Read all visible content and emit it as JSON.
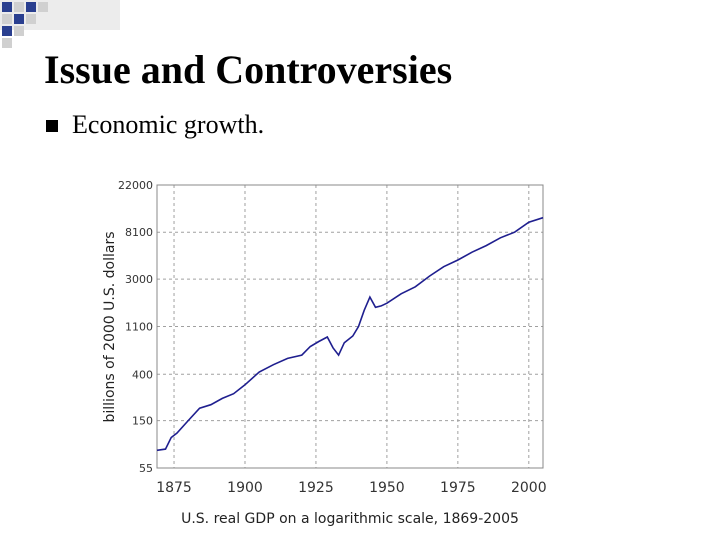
{
  "slide": {
    "title": "Issue and Controversies",
    "bullets": [
      {
        "text": "Economic growth."
      }
    ]
  },
  "colors": {
    "decoration_blue": "#2a3f8f",
    "decoration_gray": "#d9d9d9",
    "series_line": "#1f1f8f",
    "grid": "#a0a0a0"
  },
  "chart_data": {
    "type": "line",
    "title": "",
    "caption": "U.S. real GDP on a logarithmic scale, 1869-2005",
    "xlabel": "",
    "ylabel": "billions of 2000 U.S. dollars",
    "y_scale": "log",
    "xlim": [
      1869,
      2005
    ],
    "ylim": [
      55,
      22000
    ],
    "x_ticks": [
      1875,
      1900,
      1925,
      1950,
      1975,
      2000
    ],
    "y_ticks": [
      55,
      150,
      400,
      1100,
      3000,
      8100,
      22000
    ],
    "grid": true,
    "legend": "none",
    "series": [
      {
        "x": [
          1869,
          1872,
          1874,
          1876,
          1880,
          1884,
          1888,
          1892,
          1896,
          1900,
          1905,
          1910,
          1915,
          1920,
          1923,
          1926,
          1929,
          1931,
          1933,
          1935,
          1938,
          1940,
          1942,
          1944,
          1946,
          1948,
          1950,
          1955,
          1960,
          1965,
          1970,
          1975,
          1980,
          1985,
          1990,
          1995,
          2000,
          2005
        ],
        "y": [
          80,
          82,
          105,
          115,
          150,
          195,
          210,
          240,
          265,
          320,
          420,
          490,
          560,
          600,
          720,
          800,
          880,
          700,
          600,
          780,
          900,
          1100,
          1550,
          2050,
          1650,
          1700,
          1800,
          2200,
          2550,
          3200,
          3900,
          4500,
          5300,
          6100,
          7200,
          8100,
          10000,
          11000
        ]
      }
    ]
  }
}
